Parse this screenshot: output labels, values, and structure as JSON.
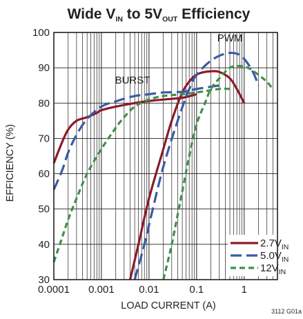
{
  "chart_data": {
    "type": "line",
    "title": {
      "main": "Wide V",
      "sub1": "IN",
      "mid": " to 5V",
      "sub2": "OUT",
      "end": " Efficiency"
    },
    "xlabel": "LOAD CURRENT (A)",
    "ylabel": "EFFICIENCY (%)",
    "x_scale": "log",
    "xlim": [
      0.0001,
      5
    ],
    "ylim": [
      30,
      100
    ],
    "x_ticks": [
      0.0001,
      0.001,
      0.01,
      0.1,
      1
    ],
    "x_tick_labels": [
      "0.0001",
      "0.001",
      "0.01",
      "0.1",
      "1"
    ],
    "y_ticks": [
      30,
      40,
      50,
      60,
      70,
      80,
      90,
      100
    ],
    "y_tick_labels": [
      "30",
      "40",
      "50",
      "60",
      "70",
      "80",
      "90",
      "100"
    ],
    "grid": true,
    "legend_position": "bottom-right",
    "annotations": [
      {
        "text": "BURST",
        "x": 0.0045,
        "y": 85.5
      },
      {
        "text": "PWM",
        "x": 0.5,
        "y": 97.5
      }
    ],
    "figure_id": "3112 G01a",
    "series": [
      {
        "name": "2.7V",
        "name_sub": "IN",
        "color": "#8b1a2b",
        "dash": "solid",
        "segments": [
          [
            [
              0.0001,
              63
            ],
            [
              0.00015,
              69
            ],
            [
              0.0002,
              72.5
            ],
            [
              0.0003,
              75
            ],
            [
              0.0005,
              76
            ],
            [
              0.0008,
              77.2
            ],
            [
              0.001,
              78
            ],
            [
              0.002,
              79
            ],
            [
              0.005,
              80
            ],
            [
              0.01,
              80.6
            ],
            [
              0.02,
              81
            ],
            [
              0.05,
              81.5
            ],
            [
              0.1,
              82.5
            ]
          ],
          [
            [
              0.004,
              30
            ],
            [
              0.006,
              40
            ],
            [
              0.01,
              53
            ],
            [
              0.02,
              67
            ],
            [
              0.03,
              75
            ],
            [
              0.05,
              83
            ],
            [
              0.08,
              87
            ],
            [
              0.12,
              88.5
            ],
            [
              0.2,
              89
            ],
            [
              0.3,
              88.8
            ],
            [
              0.5,
              87
            ],
            [
              0.7,
              84
            ],
            [
              1.0,
              80
            ]
          ]
        ]
      },
      {
        "name": "5.0V",
        "name_sub": "IN",
        "color": "#3a5aa6",
        "dash": "long",
        "segments": [
          [
            [
              0.0001,
              55.5
            ],
            [
              0.00015,
              61
            ],
            [
              0.0002,
              66
            ],
            [
              0.0003,
              71
            ],
            [
              0.0005,
              75.5
            ],
            [
              0.001,
              79
            ],
            [
              0.002,
              80.5
            ],
            [
              0.005,
              82
            ],
            [
              0.01,
              82.5
            ],
            [
              0.02,
              83
            ],
            [
              0.05,
              83.2
            ],
            [
              0.1,
              84
            ],
            [
              0.3,
              85
            ]
          ],
          [
            [
              0.005,
              30
            ],
            [
              0.008,
              40
            ],
            [
              0.012,
              50
            ],
            [
              0.02,
              62
            ],
            [
              0.04,
              75
            ],
            [
              0.07,
              84
            ],
            [
              0.1,
              88
            ],
            [
              0.2,
              92
            ],
            [
              0.4,
              94
            ],
            [
              0.7,
              94
            ],
            [
              1.0,
              92.5
            ],
            [
              1.5,
              89
            ],
            [
              2.0,
              85
            ]
          ]
        ]
      },
      {
        "name": "12V",
        "name_sub": "IN",
        "color": "#3f8f4a",
        "dash": "short",
        "segments": [
          [
            [
              0.0001,
              35
            ],
            [
              0.00015,
              42
            ],
            [
              0.0002,
              47
            ],
            [
              0.0003,
              53
            ],
            [
              0.0005,
              60
            ],
            [
              0.001,
              67
            ],
            [
              0.002,
              73
            ],
            [
              0.003,
              76
            ],
            [
              0.005,
              79
            ],
            [
              0.01,
              81
            ],
            [
              0.02,
              82
            ],
            [
              0.05,
              82.5
            ],
            [
              0.1,
              83
            ],
            [
              0.3,
              84
            ],
            [
              0.5,
              84
            ]
          ],
          [
            [
              0.02,
              30
            ],
            [
              0.03,
              40
            ],
            [
              0.05,
              55
            ],
            [
              0.07,
              65
            ],
            [
              0.1,
              74
            ],
            [
              0.15,
              80
            ],
            [
              0.2,
              84
            ],
            [
              0.3,
              87
            ],
            [
              0.5,
              90
            ],
            [
              0.8,
              90.5
            ],
            [
              1.2,
              90
            ],
            [
              2.0,
              88
            ],
            [
              3.0,
              86
            ],
            [
              4.0,
              84
            ]
          ]
        ]
      }
    ]
  }
}
